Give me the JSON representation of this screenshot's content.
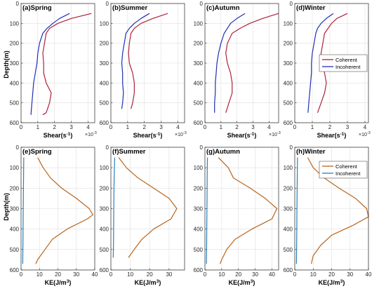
{
  "figure": {
    "colors": {
      "coherent_shear": "#b0213a",
      "incoherent_shear": "#1f2fb5",
      "coherent_ke": "#b8651b",
      "incoherent_ke": "#2a7fb8"
    },
    "ylabel_top": "Depth(m)",
    "ylabel_bottom": "Depth(m)"
  },
  "chart_data": [
    {
      "type": "line",
      "title": "(a)Spring",
      "xlabel": "Shear(s-1)",
      "multiplier": "×10-3",
      "xlim": [
        0,
        4.4
      ],
      "ylim": [
        0,
        600
      ],
      "xticks": [
        0,
        1,
        2,
        3,
        4
      ],
      "yticks": [
        0,
        100,
        200,
        300,
        400,
        500,
        600
      ],
      "series": [
        {
          "y": [
            50,
            75,
            100,
            125,
            150,
            200,
            250,
            300,
            350,
            400,
            450,
            500,
            550,
            560
          ],
          "x": [
            4.2,
            3.0,
            2.2,
            1.7,
            1.5,
            1.4,
            1.3,
            1.35,
            1.35,
            1.5,
            1.8,
            1.7,
            1.5,
            1.3
          ]
        },
        {
          "y": [
            50,
            75,
            100,
            125,
            150,
            200,
            250,
            300,
            350,
            400,
            450,
            500,
            550,
            560
          ],
          "x": [
            2.9,
            2.3,
            1.9,
            1.55,
            1.3,
            1.1,
            1.0,
            0.95,
            0.85,
            0.75,
            0.7,
            0.65,
            0.6,
            0.6
          ]
        }
      ]
    },
    {
      "type": "line",
      "title": "(b)Summer",
      "xlabel": "Shear(s-1)",
      "multiplier": "×10-3",
      "xlim": [
        0,
        4.4
      ],
      "ylim": [
        0,
        600
      ],
      "xticks": [
        0,
        1,
        2,
        3,
        4
      ],
      "yticks": [
        0,
        100,
        200,
        300,
        400,
        500,
        600
      ],
      "series": [
        {
          "y": [
            50,
            75,
            100,
            125,
            150,
            200,
            250,
            300,
            350,
            400,
            450,
            500,
            530
          ],
          "x": [
            3.4,
            2.5,
            1.8,
            1.4,
            1.2,
            1.1,
            1.05,
            1.1,
            1.3,
            1.4,
            1.4,
            1.3,
            1.2
          ]
        },
        {
          "y": [
            50,
            75,
            100,
            125,
            150,
            200,
            250,
            300,
            350,
            400,
            450,
            500,
            530
          ],
          "x": [
            2.3,
            1.8,
            1.4,
            1.1,
            0.9,
            0.8,
            0.7,
            0.65,
            0.7,
            0.7,
            0.75,
            0.7,
            0.65
          ]
        }
      ]
    },
    {
      "type": "line",
      "title": "(c)Autumn",
      "xlabel": "Shear(s-1)",
      "multiplier": "×10-3",
      "xlim": [
        0,
        4.6
      ],
      "ylim": [
        0,
        600
      ],
      "xticks": [
        0,
        1,
        2,
        3,
        4
      ],
      "yticks": [
        0,
        100,
        200,
        300,
        400,
        500,
        600
      ],
      "series": [
        {
          "y": [
            50,
            75,
            100,
            125,
            150,
            200,
            250,
            300,
            350,
            400,
            450,
            500,
            550
          ],
          "x": [
            4.6,
            3.6,
            2.8,
            2.2,
            1.7,
            1.4,
            1.3,
            1.4,
            1.6,
            1.7,
            1.7,
            1.5,
            1.3
          ]
        },
        {
          "y": [
            50,
            75,
            100,
            125,
            150,
            200,
            250,
            300,
            350,
            400,
            450,
            500,
            550
          ],
          "x": [
            2.5,
            2.0,
            1.6,
            1.4,
            1.2,
            1.0,
            0.85,
            0.75,
            0.7,
            0.65,
            0.65,
            0.6,
            0.6
          ]
        }
      ]
    },
    {
      "type": "line",
      "title": "(d)Winter",
      "xlabel": "Shear(s-1)",
      "multiplier": "×10-3",
      "xlim": [
        0,
        4.2
      ],
      "ylim": [
        0,
        600
      ],
      "xticks": [
        0,
        1,
        2,
        3,
        4
      ],
      "yticks": [
        0,
        100,
        200,
        300,
        400,
        500,
        600
      ],
      "legend": [
        "Coherent",
        "Incoherent"
      ],
      "series": [
        {
          "name": "Coherent",
          "y": [
            50,
            75,
            100,
            125,
            150,
            200,
            250,
            300,
            350,
            400,
            450,
            500,
            550
          ],
          "x": [
            3.0,
            2.4,
            2.1,
            1.9,
            1.7,
            1.6,
            1.5,
            1.5,
            1.7,
            1.8,
            1.7,
            1.5,
            1.3
          ]
        },
        {
          "name": "Incoherent",
          "y": [
            50,
            75,
            100,
            125,
            150,
            200,
            250,
            300,
            350,
            400,
            450,
            500,
            550
          ],
          "x": [
            2.2,
            1.8,
            1.5,
            1.3,
            1.2,
            1.1,
            1.0,
            0.95,
            0.95,
            0.9,
            0.85,
            0.8,
            0.75
          ]
        }
      ]
    },
    {
      "type": "line",
      "title": "(e)Spring",
      "xlabel": "KE(J/m3)",
      "xlim": [
        0,
        40
      ],
      "ylim": [
        0,
        600
      ],
      "xticks": [
        0,
        10,
        20,
        30,
        40
      ],
      "yticks": [
        0,
        100,
        200,
        300,
        400,
        500,
        600
      ],
      "series": [
        {
          "y": [
            50,
            100,
            150,
            200,
            250,
            300,
            330,
            350,
            400,
            450,
            500,
            550,
            570
          ],
          "x": [
            9,
            12,
            16,
            22,
            30,
            37,
            39,
            36,
            25,
            17,
            13,
            9,
            8
          ]
        },
        {
          "y": [
            50,
            100,
            200,
            300,
            400,
            500,
            570
          ],
          "x": [
            1.5,
            1.4,
            1.3,
            1.2,
            1.1,
            1.0,
            0.9
          ]
        }
      ]
    },
    {
      "type": "line",
      "title": "(f)Summer",
      "xlabel": "KE(J/m3)",
      "xlim": [
        0,
        38
      ],
      "ylim": [
        0,
        600
      ],
      "xticks": [
        0,
        10,
        20,
        30
      ],
      "yticks": [
        0,
        100,
        200,
        300,
        400,
        500,
        600
      ],
      "series": [
        {
          "y": [
            50,
            100,
            150,
            200,
            250,
            300,
            350,
            400,
            450,
            500,
            540
          ],
          "x": [
            4,
            8,
            14,
            22,
            30,
            34,
            31,
            22,
            16,
            12,
            9
          ]
        },
        {
          "y": [
            50,
            100,
            200,
            300,
            400,
            500,
            540
          ],
          "x": [
            2.0,
            1.8,
            1.6,
            1.5,
            1.4,
            1.3,
            1.2
          ]
        }
      ]
    },
    {
      "type": "line",
      "title": "(g)Autumn",
      "xlabel": "KE(J/m3)",
      "xlim": [
        0,
        44
      ],
      "ylim": [
        0,
        600
      ],
      "xticks": [
        0,
        10,
        20,
        30,
        40
      ],
      "yticks": [
        0,
        100,
        200,
        300,
        400,
        500,
        600
      ],
      "series": [
        {
          "y": [
            50,
            100,
            150,
            200,
            250,
            300,
            350,
            400,
            450,
            500,
            550,
            570
          ],
          "x": [
            8,
            14,
            17,
            27,
            36,
            43,
            40,
            28,
            18,
            13,
            10,
            9
          ]
        },
        {
          "y": [
            50,
            100,
            200,
            300,
            400,
            500,
            570
          ],
          "x": [
            1.5,
            1.4,
            1.3,
            1.2,
            1.1,
            1.0,
            0.9
          ]
        }
      ]
    },
    {
      "type": "line",
      "title": "(h)Winter",
      "xlabel": "KE(J/m3)",
      "xlim": [
        0,
        40
      ],
      "ylim": [
        0,
        600
      ],
      "xticks": [
        0,
        10,
        20,
        30,
        40
      ],
      "yticks": [
        0,
        100,
        200,
        300,
        400,
        500,
        600
      ],
      "legend": [
        "Coherent",
        "Incoherent"
      ],
      "series": [
        {
          "name": "Coherent",
          "y": [
            50,
            100,
            150,
            200,
            250,
            300,
            340,
            380,
            430,
            480,
            530,
            570
          ],
          "x": [
            7,
            10,
            16,
            24,
            33,
            39,
            40,
            32,
            20,
            14,
            10,
            9
          ]
        },
        {
          "name": "Incoherent",
          "y": [
            50,
            100,
            200,
            300,
            400,
            500,
            570
          ],
          "x": [
            1.5,
            1.4,
            1.3,
            1.2,
            1.1,
            1.0,
            0.9
          ]
        }
      ]
    }
  ]
}
